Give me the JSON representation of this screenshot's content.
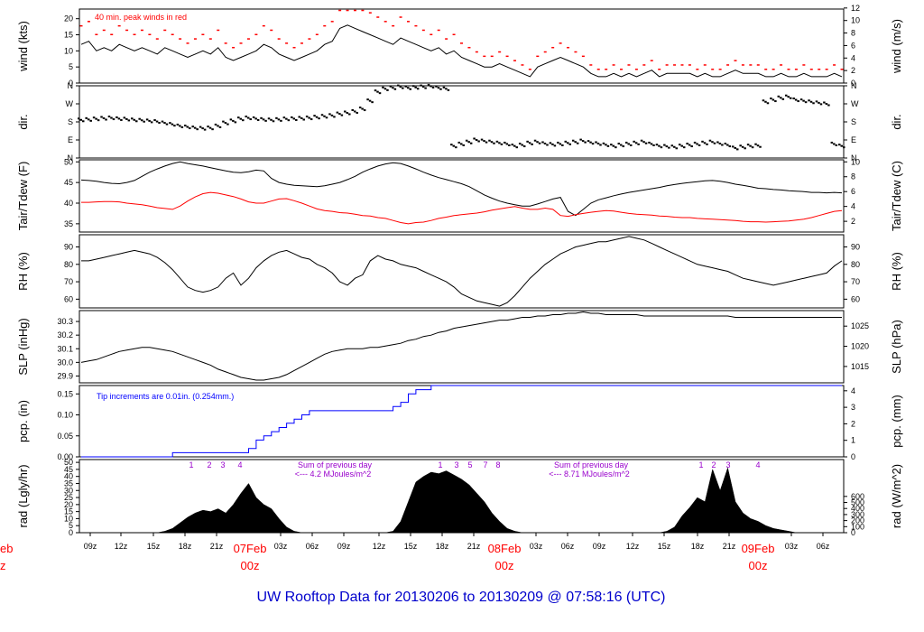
{
  "title": "UW Rooftop Data for 20130206  to  20130209 @ 07:58:16  (UTC)",
  "colors": {
    "primary": "#000000",
    "peak": "#ff0000",
    "dew": "#ff0000",
    "precip": "#0000ff",
    "annotation": "#9900cc",
    "date": "#ff0000",
    "title": "#0000cc"
  },
  "x_axis": {
    "hour_ticks": [
      "09z",
      "12z",
      "15z",
      "18z",
      "21z",
      "03z",
      "06z",
      "09z",
      "12z",
      "15z",
      "18z",
      "21z",
      "03z",
      "06z",
      "09z",
      "12z",
      "15z",
      "18z",
      "21z",
      "03z",
      "06z"
    ],
    "date_labels": [
      {
        "date": "07Feb",
        "time": "00z"
      },
      {
        "date": "08Feb",
        "time": "00z"
      },
      {
        "date": "09Feb",
        "time": "00z"
      }
    ],
    "cut_date": "eb",
    "cut_time": "z"
  },
  "chart_data": [
    {
      "type": "line",
      "panel": "wind",
      "ylabel": "wind (kts)",
      "ylabel_right": "wind (m/s)",
      "annotation": "40 min. peak winds in red",
      "ylim": [
        0,
        23
      ],
      "yticks": [
        "0",
        "5",
        "10",
        "15",
        "20"
      ],
      "yticks_right": [
        "0",
        "2",
        "4",
        "6",
        "8",
        "10",
        "12"
      ],
      "series": [
        {
          "values": [
            12,
            13,
            10,
            11,
            10,
            12,
            11,
            10,
            11,
            10,
            9,
            11,
            10,
            9,
            8,
            9,
            10,
            9,
            11,
            8,
            7,
            8,
            9,
            10,
            12,
            11,
            9,
            8,
            7,
            8,
            9,
            10,
            12,
            13,
            17,
            18,
            17,
            16,
            15,
            14,
            13,
            12,
            14,
            13,
            12,
            11,
            10,
            11,
            9,
            10,
            8,
            7,
            6,
            5,
            5,
            6,
            5,
            4,
            3,
            2,
            5,
            6,
            7,
            8,
            7,
            6,
            5,
            3,
            2,
            2,
            3,
            2,
            3,
            2,
            3,
            4,
            2,
            3,
            3,
            3,
            3,
            2,
            3,
            2,
            2,
            3,
            4,
            3,
            3,
            3,
            2,
            2,
            3,
            2,
            2,
            3,
            2,
            2,
            2,
            3,
            2
          ]
        }
      ]
    },
    {
      "type": "scatter",
      "panel": "direction",
      "ylabel": "dir.",
      "ylabel_right": "dir.",
      "ylim": [
        0,
        360
      ],
      "yticks": [
        "N",
        "E",
        "S",
        "W",
        "N"
      ],
      "yticks_right": [
        "N",
        "E",
        "S",
        "W",
        "N"
      ],
      "series": [
        {
          "values": [
            190,
            192,
            195,
            198,
            200,
            196,
            194,
            190,
            188,
            185,
            182,
            175,
            168,
            160,
            155,
            150,
            148,
            150,
            160,
            175,
            185,
            195,
            200,
            196,
            192,
            190,
            192,
            195,
            196,
            198,
            200,
            204,
            208,
            212,
            220,
            225,
            232,
            245,
            285,
            330,
            345,
            350,
            355,
            350,
            352,
            355,
            358,
            350,
            345,
            60,
            70,
            80,
            90,
            85,
            80,
            75,
            70,
            60,
            65,
            75,
            80,
            72,
            68,
            70,
            75,
            80,
            85,
            78,
            72,
            66,
            60,
            65,
            70,
            75,
            80,
            70,
            60,
            58,
            55,
            60,
            65,
            70,
            75,
            80,
            72,
            65,
            50,
            55,
            60,
            62,
            280,
            290,
            300,
            305,
            290,
            285,
            280,
            275,
            270,
            70,
            60
          ]
        }
      ]
    },
    {
      "type": "line",
      "panel": "temperature",
      "ylabel": "Tair/Tdew (F)",
      "ylabel_right": "Tair/Tdew (C)",
      "ylim": [
        33,
        50.5
      ],
      "yticks": [
        "35",
        "40",
        "45",
        "50"
      ],
      "yticks_right": [
        "2",
        "4",
        "6",
        "8",
        "10"
      ],
      "series": [
        {
          "values": [
            45.6,
            45.5,
            45.3,
            45,
            44.8,
            44.7,
            45,
            45.5,
            46.5,
            47.5,
            48.3,
            49,
            49.6,
            50,
            49.6,
            49.3,
            49,
            48.6,
            48.2,
            47.8,
            47.5,
            47.4,
            47.6,
            48,
            47.8,
            46,
            45,
            44.6,
            44.3,
            44.2,
            44.1,
            44,
            44.2,
            44.6,
            45,
            45.7,
            46.5,
            47.5,
            48.3,
            49,
            49.5,
            49.8,
            49.6,
            49,
            48.3,
            47.5,
            46.8,
            46.2,
            45.7,
            45.2,
            44.7,
            44,
            43,
            42,
            41.2,
            40.5,
            40,
            39.6,
            39.3,
            39.3,
            39.8,
            40.4,
            41,
            41.4,
            38,
            37,
            38.5,
            40,
            40.8,
            41.3,
            41.8,
            42.2,
            42.6,
            42.9,
            43.2,
            43.5,
            43.8,
            44.2,
            44.5,
            44.8,
            45,
            45.2,
            45.4,
            45.5,
            45.3,
            45,
            44.6,
            44.3,
            44,
            43.6,
            43.5,
            43.3,
            43.2,
            43,
            42.9,
            42.8,
            42.6,
            42.6,
            42.5,
            42.6,
            42.5
          ]
        },
        {
          "values": [
            40.2,
            40.2,
            40.3,
            40.4,
            40.4,
            40.3,
            40,
            39.8,
            39.6,
            39.3,
            38.9,
            38.7,
            38.5,
            39.3,
            40.5,
            41.5,
            42.3,
            42.6,
            42.4,
            42,
            41.6,
            41,
            40.3,
            40,
            40,
            40.5,
            41,
            41.1,
            40.6,
            40,
            39.3,
            38.6,
            38.2,
            38,
            37.7,
            37.6,
            37.3,
            37,
            36.9,
            36.5,
            36.3,
            35.8,
            35.3,
            35,
            35.3,
            35.4,
            35.8,
            36.3,
            36.6,
            37,
            37.2,
            37.4,
            37.6,
            37.9,
            38.3,
            38.6,
            38.9,
            39.2,
            38.8,
            38.5,
            38.5,
            38.8,
            38.5,
            37,
            36.8,
            37.2,
            37.5,
            37.8,
            38,
            38.2,
            38.1,
            37.8,
            37.5,
            37.3,
            37.2,
            37.1,
            36.9,
            36.8,
            36.6,
            36.5,
            36.5,
            36.3,
            36.2,
            36.1,
            36,
            35.9,
            35.8,
            35.6,
            35.5,
            35.5,
            35.4,
            35.5,
            35.6,
            35.7,
            35.9,
            36.1,
            36.5,
            37,
            37.5,
            38,
            38.2
          ]
        }
      ]
    },
    {
      "type": "line",
      "panel": "humidity",
      "ylabel": "RH (%)",
      "ylabel_right": "RH (%)",
      "ylim": [
        55,
        97
      ],
      "yticks": [
        "60",
        "70",
        "80",
        "90"
      ],
      "yticks_right": [
        "60",
        "70",
        "80",
        "90"
      ],
      "series": [
        {
          "values": [
            82,
            82,
            83,
            84,
            85,
            86,
            87,
            88,
            87,
            86,
            84,
            81,
            77,
            72,
            67,
            65,
            64,
            65,
            67,
            72,
            75,
            68,
            72,
            78,
            82,
            85,
            87,
            88,
            86,
            84,
            83,
            80,
            78,
            75,
            70,
            68,
            72,
            74,
            82,
            85,
            83,
            82,
            80,
            79,
            78,
            76,
            74,
            72,
            70,
            67,
            63,
            61,
            59,
            58,
            57,
            56,
            58,
            62,
            67,
            72,
            76,
            80,
            83,
            86,
            88,
            90,
            91,
            92,
            93,
            93,
            94,
            95,
            96,
            95,
            94,
            92,
            90,
            88,
            86,
            84,
            82,
            80,
            79,
            78,
            77,
            76,
            74,
            72,
            71,
            70,
            69,
            68,
            69,
            70,
            71,
            72,
            73,
            74,
            75,
            79,
            82
          ]
        }
      ]
    },
    {
      "type": "line",
      "panel": "pressure",
      "ylabel": "SLP (inHg)",
      "ylabel_right": "SLP (hPa)",
      "ylim": [
        29.85,
        30.38
      ],
      "yticks": [
        "29.9",
        "30.0",
        "30.1",
        "30.2",
        "30.3"
      ],
      "yticks_right": [
        "1015",
        "1020",
        "1025"
      ],
      "series": [
        {
          "values": [
            30.0,
            30.01,
            30.02,
            30.04,
            30.06,
            30.08,
            30.09,
            30.1,
            30.11,
            30.11,
            30.1,
            30.09,
            30.08,
            30.06,
            30.04,
            30.02,
            30.0,
            29.98,
            29.95,
            29.93,
            29.91,
            29.89,
            29.88,
            29.87,
            29.87,
            29.88,
            29.89,
            29.91,
            29.94,
            29.97,
            30.0,
            30.03,
            30.06,
            30.08,
            30.09,
            30.1,
            30.1,
            30.1,
            30.11,
            30.11,
            30.12,
            30.13,
            30.14,
            30.16,
            30.17,
            30.19,
            30.2,
            30.22,
            30.23,
            30.25,
            30.26,
            30.27,
            30.28,
            30.29,
            30.3,
            30.31,
            30.31,
            30.32,
            30.33,
            30.33,
            30.34,
            30.34,
            30.35,
            30.35,
            30.36,
            30.36,
            30.37,
            30.36,
            30.36,
            30.35,
            30.35,
            30.35,
            30.35,
            30.35,
            30.34,
            30.34,
            30.34,
            30.34,
            30.34,
            30.34,
            30.34,
            30.34,
            30.34,
            30.34,
            30.34,
            30.34,
            30.33,
            30.33,
            30.33,
            30.33,
            30.33,
            30.33,
            30.33,
            30.33,
            30.33,
            30.33,
            30.33,
            30.33,
            30.33,
            30.33,
            30.33
          ]
        }
      ]
    },
    {
      "type": "line",
      "panel": "precipitation",
      "ylabel": "pcp. (in)",
      "ylabel_right": "pcp. (mm)",
      "annotation": "Tip increments are 0.01in. (0.254mm.)",
      "ylim": [
        0,
        0.17
      ],
      "yticks": [
        "0.00",
        "0.05",
        "0.10",
        "0.15"
      ],
      "yticks_right": [
        "0",
        "1",
        "2",
        "3",
        "4"
      ],
      "series": [
        {
          "values": [
            0,
            0,
            0,
            0,
            0,
            0,
            0,
            0,
            0,
            0,
            0,
            0,
            0.01,
            0.01,
            0.01,
            0.01,
            0.01,
            0.01,
            0.01,
            0.01,
            0.01,
            0.01,
            0.02,
            0.04,
            0.05,
            0.06,
            0.07,
            0.08,
            0.09,
            0.1,
            0.11,
            0.11,
            0.11,
            0.11,
            0.11,
            0.11,
            0.11,
            0.11,
            0.11,
            0.11,
            0.11,
            0.12,
            0.13,
            0.15,
            0.16,
            0.16,
            0.17,
            0.17,
            0.17,
            0.17,
            0.17,
            0.17,
            0.17,
            0.17,
            0.17,
            0.17,
            0.17,
            0.17,
            0.17,
            0.17,
            0.17,
            0.17,
            0.17,
            0.17,
            0.17,
            0.17,
            0.17,
            0.17,
            0.17,
            0.17,
            0.17,
            0.17,
            0.17,
            0.17,
            0.17,
            0.17,
            0.17,
            0.17,
            0.17,
            0.17,
            0.17,
            0.17,
            0.17,
            0.17,
            0.17,
            0.17,
            0.17,
            0.17,
            0.17,
            0.17,
            0.17,
            0.17,
            0.17,
            0.17,
            0.17,
            0.17,
            0.17,
            0.17,
            0.17,
            0.17,
            0.17
          ]
        }
      ]
    },
    {
      "type": "area",
      "panel": "radiation",
      "ylabel": "rad (Lgly/hr)",
      "ylabel_right": "rad (W/m^2)",
      "ylim": [
        0,
        52
      ],
      "yticks": [
        "0",
        "5",
        "10",
        "15",
        "20",
        "25",
        "30",
        "35",
        "40",
        "45",
        "50"
      ],
      "yticks_right": [
        "0",
        "100",
        "200",
        "300",
        "400",
        "500",
        "600"
      ],
      "annotations": [
        {
          "line1": "Sum of previous day",
          "line2": "<--- 4.2 MJoules/m^2"
        },
        {
          "line1": "Sum of previous day",
          "line2": "<--- 8.71 MJoules/m^2"
        }
      ],
      "markers": [
        "1",
        "2",
        "3",
        "4",
        "1",
        "3",
        "5",
        "7",
        "8",
        "1",
        "2",
        "3",
        "4"
      ],
      "series": [
        {
          "values": [
            0,
            0,
            0,
            0,
            0,
            0,
            0,
            0,
            0,
            0,
            0,
            1,
            3,
            7,
            11,
            14,
            16,
            15,
            17,
            14,
            20,
            28,
            35,
            25,
            20,
            17,
            10,
            4,
            1,
            0,
            0,
            0,
            0,
            0,
            0,
            0,
            0,
            0,
            0,
            0,
            0,
            1,
            8,
            22,
            36,
            40,
            43,
            42,
            44,
            41,
            38,
            34,
            28,
            22,
            14,
            8,
            3,
            1,
            0,
            0,
            0,
            0,
            0,
            0,
            0,
            0,
            0,
            0,
            0,
            0,
            0,
            0,
            0,
            0,
            0,
            0,
            0,
            1,
            4,
            12,
            18,
            25,
            22,
            45,
            30,
            46,
            22,
            14,
            10,
            8,
            5,
            3,
            2,
            1,
            0,
            0,
            0,
            0,
            0,
            0,
            0
          ]
        }
      ]
    }
  ]
}
